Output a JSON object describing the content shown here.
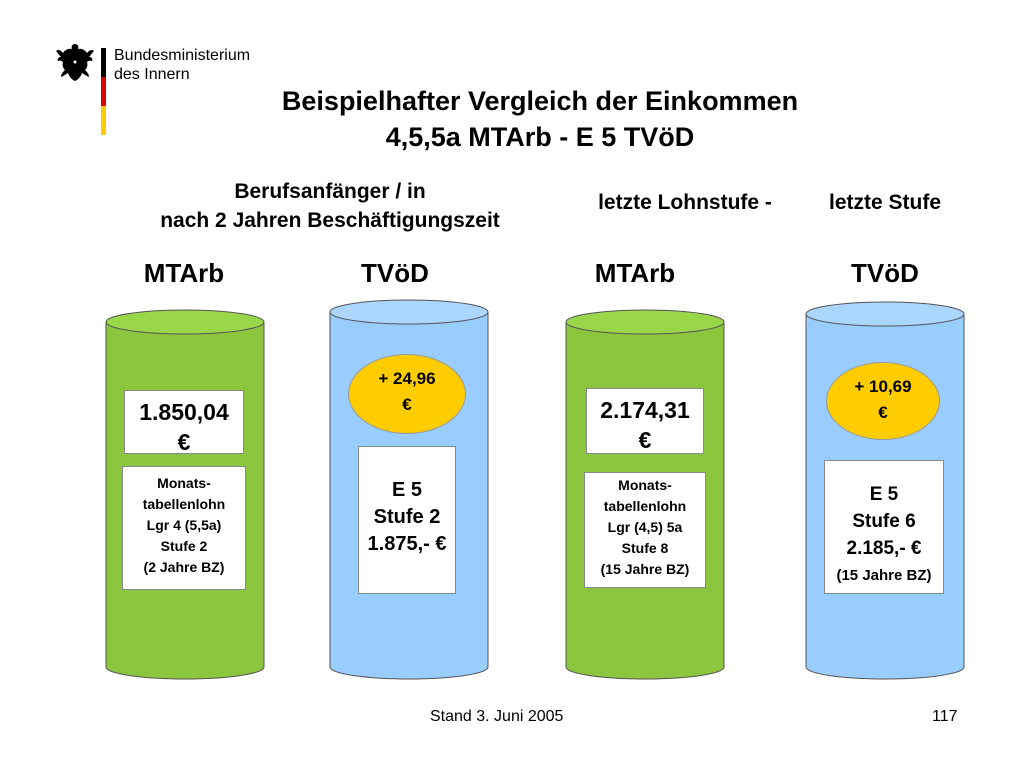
{
  "header": {
    "ministry_line1": "Bundesministerium",
    "ministry_line2": "des Innern",
    "flag_colors": [
      "#000000",
      "#dd0000",
      "#ffcc00"
    ]
  },
  "title": {
    "line1": "Beispielhafter Vergleich der Einkommen",
    "line2": "4,5,5a MTArb - E 5 TVöD"
  },
  "sections": {
    "left_line1": "Berufsanfänger / in",
    "left_line2": "nach 2 Jahren Beschäftigungszeit",
    "right_a": "letzte Lohnstufe -",
    "right_b": "letzte Stufe"
  },
  "colors": {
    "mtarb_cylinder": "#8cc63f",
    "tvod_cylinder": "#99ccff",
    "bonus_oval": "#ffcc00"
  },
  "columns": [
    {
      "header": "MTArb",
      "amount_line1": "1.850,04",
      "amount_line2": "€",
      "details": [
        "Monats-",
        "tabellenlohn",
        "Lgr 4 (5,5a)",
        "Stufe 2",
        "(2 Jahre BZ)"
      ]
    },
    {
      "header": "TVöD",
      "bonus_line1": "+ 24,96",
      "bonus_line2": "€",
      "details": [
        "E 5",
        "Stufe 2",
        "1.875,- €"
      ]
    },
    {
      "header": "MTArb",
      "amount_line1": "2.174,31",
      "amount_line2": "€",
      "details": [
        "Monats-",
        "tabellenlohn",
        "Lgr (4,5) 5a",
        "Stufe 8",
        "(15 Jahre BZ)"
      ]
    },
    {
      "header": "TVöD",
      "bonus_line1": "+ 10,69",
      "bonus_line2": "€",
      "details": [
        "E 5",
        "Stufe 6",
        "2.185,- €",
        "(15 Jahre BZ)"
      ]
    }
  ],
  "footer": {
    "date": "Stand 3. Juni 2005",
    "page": "117"
  }
}
